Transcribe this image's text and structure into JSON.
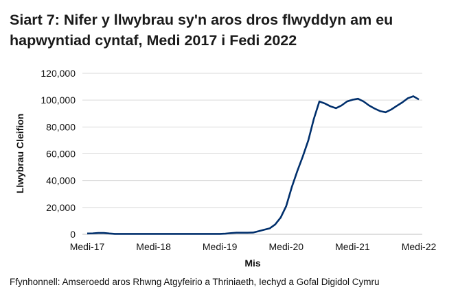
{
  "chart_data": {
    "type": "line",
    "title": "Siart 7: Nifer y llwybrau sy'n aros dros flwyddyn am eu hapwyntiad cyntaf, Medi 2017 i Fedi 2022",
    "xlabel": "Mis",
    "ylabel": "Llwybrau Cleifion",
    "ylim": [
      0,
      120000
    ],
    "yticks": [
      "0",
      "20,000",
      "40,000",
      "60,000",
      "80,000",
      "100,000",
      "120,000"
    ],
    "xtick_labels": [
      "Medi-17",
      "Medi-18",
      "Medi-19",
      "Medi-20",
      "Medi-21",
      "Medi-22"
    ],
    "x_start": "2017-09",
    "x_end": "2022-09",
    "grid": true,
    "line_color": "#002f6c",
    "values": [
      600,
      700,
      1000,
      1000,
      600,
      300,
      300,
      300,
      300,
      300,
      300,
      300,
      300,
      300,
      300,
      300,
      300,
      300,
      300,
      300,
      300,
      300,
      300,
      300,
      300,
      500,
      900,
      1200,
      1200,
      1200,
      1300,
      2300,
      3400,
      4400,
      7300,
      12500,
      21000,
      35000,
      47000,
      58000,
      70000,
      86000,
      99000,
      97500,
      95400,
      94000,
      96000,
      99000,
      100300,
      101000,
      99000,
      96000,
      93700,
      91800,
      91000,
      93000,
      95700,
      98300,
      101400,
      102900,
      100500
    ]
  },
  "source": "Ffynhonnell: Amseroedd aros Rhwng Atgyfeirio a Thriniaeth, Iechyd a Gofal Digidol Cymru"
}
